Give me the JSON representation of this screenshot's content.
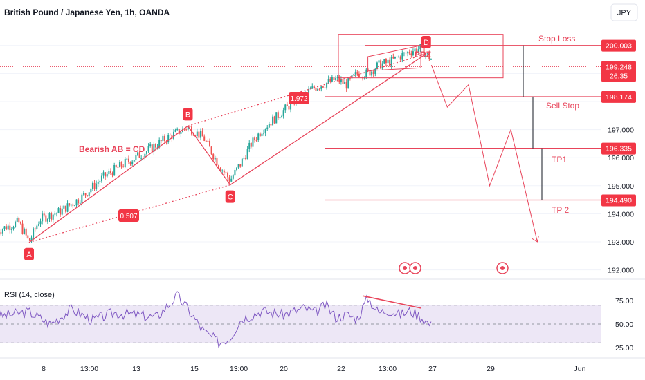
{
  "header": {
    "symbol_title": "British Pound / Japanese Yen, 1h, OANDA",
    "currency_button": "JPY"
  },
  "chart_data": {
    "type": "line",
    "title": "British Pound / Japanese Yen, 1h, OANDA",
    "price_axis": {
      "ylim": [
        191.7,
        201.2
      ],
      "ticks": [
        192.0,
        193.0,
        194.0,
        195.0,
        196.0,
        197.0
      ]
    },
    "time_axis": {
      "ticks": [
        "8",
        "13:00",
        "13",
        "15",
        "13:00",
        "20",
        "22",
        "13:00",
        "27",
        "29",
        "Jun"
      ]
    },
    "price_path": [
      [
        -3,
        193.4
      ],
      [
        -1,
        193.7
      ],
      [
        0,
        193.0
      ],
      [
        1,
        193.8
      ],
      [
        3,
        194.1
      ],
      [
        5,
        194.6
      ],
      [
        7,
        195.3
      ],
      [
        9,
        195.8
      ],
      [
        11,
        196.2
      ],
      [
        13,
        196.7
      ],
      [
        15,
        197.1
      ],
      [
        16.5,
        196.7
      ],
      [
        18,
        195.7
      ],
      [
        19,
        195.2
      ],
      [
        20,
        195.8
      ],
      [
        21,
        196.5
      ],
      [
        22,
        197.0
      ],
      [
        23.5,
        197.5
      ],
      [
        25,
        198.0
      ],
      [
        27,
        198.5
      ],
      [
        29,
        198.8
      ],
      [
        30,
        198.6
      ],
      [
        31,
        199.0
      ],
      [
        32,
        199.0
      ],
      [
        33,
        199.3
      ],
      [
        34,
        199.4
      ],
      [
        35,
        199.6
      ],
      [
        36,
        199.8
      ],
      [
        37,
        199.9
      ],
      [
        38,
        199.5
      ]
    ],
    "rsi_path": [
      [
        -3,
        58
      ],
      [
        0,
        63
      ],
      [
        2,
        50
      ],
      [
        4,
        66
      ],
      [
        6,
        54
      ],
      [
        8,
        62
      ],
      [
        10,
        60
      ],
      [
        12,
        57
      ],
      [
        14,
        80
      ],
      [
        15,
        66
      ],
      [
        16.5,
        42
      ],
      [
        18,
        30
      ],
      [
        19,
        36
      ],
      [
        20,
        55
      ],
      [
        22,
        64
      ],
      [
        24,
        60
      ],
      [
        26,
        67
      ],
      [
        27,
        62
      ],
      [
        28,
        70
      ],
      [
        29,
        57
      ],
      [
        30,
        60
      ],
      [
        31,
        56
      ],
      [
        32,
        78
      ],
      [
        33,
        62
      ],
      [
        34,
        65
      ],
      [
        35,
        60
      ],
      [
        36,
        64
      ],
      [
        37,
        58
      ],
      [
        38,
        48
      ]
    ],
    "harmonic": {
      "name": "Bearish AB = CD",
      "points": [
        {
          "label": "A",
          "t": 0,
          "price": 192.98
        },
        {
          "label": "B",
          "t": 15,
          "price": 197.13
        },
        {
          "label": "C",
          "t": 19,
          "price": 195.03
        },
        {
          "label": "D",
          "t": 37.5,
          "price": 199.7
        }
      ],
      "ratio_ac": "0.507",
      "ratio_bd": "1.972"
    },
    "levels": [
      {
        "name": "Stop Loss",
        "price": 200.003,
        "badge": "200.003"
      },
      {
        "name": "current",
        "price": 199.248,
        "badge": "199.248",
        "countdown": "26:35"
      },
      {
        "name": "Sell Stop",
        "price": 198.174,
        "badge": "198.174"
      },
      {
        "name": "TP1",
        "price": 196.335,
        "badge": "196.335"
      },
      {
        "name": "TP 2",
        "price": 194.49,
        "badge": "194.490"
      }
    ],
    "projection": [
      [
        38,
        199.3
      ],
      [
        39.5,
        197.8
      ],
      [
        41.5,
        198.6
      ],
      [
        43.5,
        195.0
      ],
      [
        45.5,
        197.0
      ],
      [
        48,
        193.0
      ]
    ],
    "prz_label": "PRZ",
    "rsi": {
      "title": "RSI (14, close)",
      "ylim": [
        18,
        90
      ],
      "ticks": [
        75.0,
        50.0,
        25.0
      ],
      "tick_labels": [
        "75.00",
        "50.00",
        "25.00"
      ],
      "band": [
        30,
        70
      ]
    }
  },
  "annotations": {
    "stop_loss": "Stop Loss",
    "sell_stop": "Sell Stop",
    "tp1": "TP1",
    "tp2": "TP 2",
    "prz": "PRZ",
    "pattern": "Bearish AB = CD"
  },
  "colors": {
    "pattern": "#e8445a",
    "up_candle": "#26a69a",
    "down_candle": "#ef5350",
    "rsi_line": "#7e57c2",
    "rsi_band": "#ede7f6",
    "axis_text": "#131722",
    "badge": "#f23645"
  }
}
